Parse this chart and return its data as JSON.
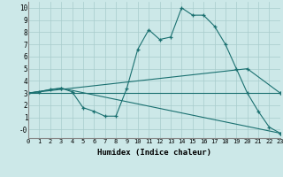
{
  "xlabel": "Humidex (Indice chaleur)",
  "xlim": [
    0,
    23
  ],
  "ylim": [
    -0.7,
    10.5
  ],
  "xticks": [
    0,
    1,
    2,
    3,
    4,
    5,
    6,
    7,
    8,
    9,
    10,
    11,
    12,
    13,
    14,
    15,
    16,
    17,
    18,
    19,
    20,
    21,
    22,
    23
  ],
  "yticks": [
    0,
    1,
    2,
    3,
    4,
    5,
    6,
    7,
    8,
    9,
    10
  ],
  "ytick_labels": [
    "-0",
    "1",
    "2",
    "3",
    "4",
    "5",
    "6",
    "7",
    "8",
    "9",
    "10"
  ],
  "bg_color": "#cce8e8",
  "line_color": "#1a7070",
  "grid_color": "#a8cccc",
  "lines": [
    {
      "x": [
        0,
        1,
        2,
        3,
        4,
        5,
        6,
        7,
        8,
        9,
        10,
        11,
        12,
        13,
        14,
        15,
        16,
        17,
        18,
        19,
        20,
        21,
        22,
        23
      ],
      "y": [
        3.0,
        3.1,
        3.3,
        3.4,
        3.1,
        1.8,
        1.5,
        1.1,
        1.1,
        3.4,
        6.6,
        8.2,
        7.4,
        7.6,
        10.0,
        9.4,
        9.4,
        8.5,
        7.0,
        5.0,
        3.0,
        1.5,
        0.2,
        -0.3
      ]
    },
    {
      "x": [
        0,
        3,
        23
      ],
      "y": [
        3.0,
        3.4,
        -0.3
      ]
    },
    {
      "x": [
        0,
        23
      ],
      "y": [
        3.0,
        3.0
      ]
    },
    {
      "x": [
        0,
        20,
        23
      ],
      "y": [
        3.0,
        5.0,
        3.0
      ]
    }
  ]
}
